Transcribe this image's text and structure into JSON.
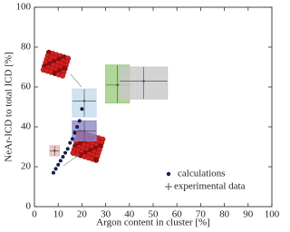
{
  "chart_data": {
    "type": "scatter",
    "x_label": "Argon content in cluster [%]",
    "y_label": "NeAr-ICD to total ICD [%]",
    "xlim": [
      0,
      100
    ],
    "ylim": [
      0,
      100
    ],
    "xticks": [
      0,
      10,
      20,
      30,
      40,
      50,
      60,
      70,
      80,
      90,
      100
    ],
    "yticks": [
      0,
      20,
      40,
      60,
      80,
      100
    ],
    "legend": "lower right",
    "series": [
      {
        "name": "calculations",
        "color": "#141c4a",
        "x": [
          8,
          9,
          10,
          11,
          12,
          13,
          14,
          15,
          16,
          17,
          18,
          19,
          20
        ],
        "y": [
          17,
          19,
          21,
          23,
          25,
          27,
          29,
          32,
          34,
          37,
          40,
          43,
          49
        ]
      },
      {
        "name": "experimental data",
        "color": "#555555",
        "box_colors": [
          "#e8b8b8",
          "#c4dced",
          "#8f87c9",
          "#9ccc7e",
          "#c8c8c8"
        ],
        "x": [
          8.5,
          21,
          21,
          35,
          46
        ],
        "y": [
          28,
          53,
          38,
          61,
          63
        ],
        "x_low": [
          6.5,
          16,
          16,
          30,
          36
        ],
        "x_high": [
          10.5,
          26,
          26,
          40,
          56
        ],
        "y_low": [
          25.5,
          45,
          33,
          52,
          54
        ],
        "y_high": [
          30.5,
          59,
          43,
          71,
          70
        ]
      }
    ]
  }
}
